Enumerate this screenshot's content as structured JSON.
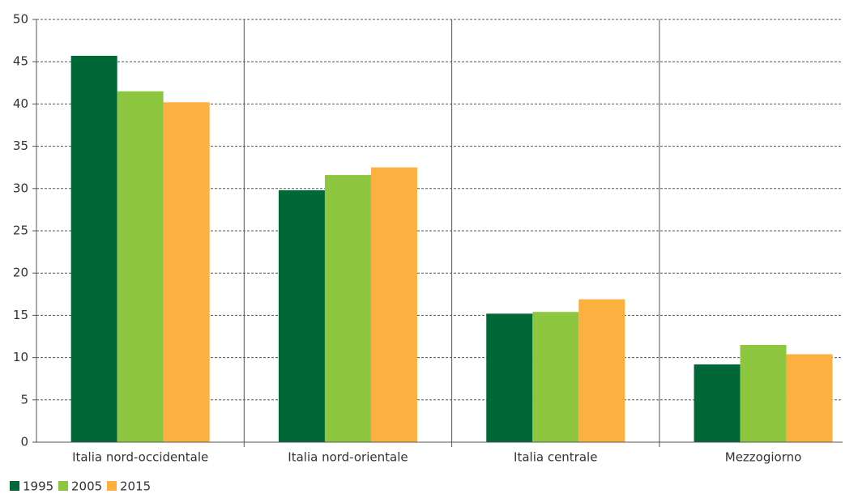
{
  "chart_data": {
    "type": "bar",
    "categories": [
      "Italia nord-occidentale",
      "Italia nord-orientale",
      "Italia centrale",
      "Mezzogiorno"
    ],
    "series": [
      {
        "name": "1995",
        "color": "#006837",
        "values": [
          45.7,
          29.8,
          15.2,
          9.2
        ]
      },
      {
        "name": "2005",
        "color": "#8dc63f",
        "values": [
          41.5,
          31.6,
          15.4,
          11.5
        ]
      },
      {
        "name": "2015",
        "color": "#fbb040",
        "values": [
          40.2,
          32.5,
          16.9,
          10.4
        ]
      }
    ],
    "ylim": [
      0,
      50
    ],
    "yticks": [
      0,
      5,
      10,
      15,
      20,
      25,
      30,
      35,
      40,
      45,
      50
    ],
    "grid": true,
    "legend": "bottom-left"
  }
}
